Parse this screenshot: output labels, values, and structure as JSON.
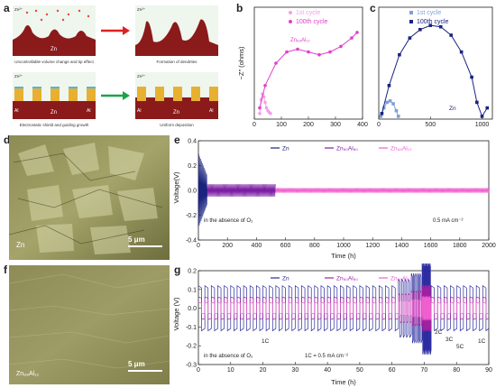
{
  "panel_labels": {
    "a": "a",
    "b": "b",
    "c": "c",
    "d": "d",
    "e": "e",
    "f": "f",
    "g": "g"
  },
  "panel_a": {
    "zn_ion": "Zn²⁺",
    "top_left_metal": "Zn",
    "top_left_caption": "Uncontrollable volume change and tip effect",
    "top_right_caption": "Formation of dendrites",
    "bottom_left_caption": "Electrostatic shield and guiding growth",
    "bottom_right_caption": "Uniform deposition",
    "al_label": "Al",
    "zn_label": "Zn",
    "arrow_top_color": "#e02020",
    "arrow_bottom_color": "#1aa34a"
  },
  "panel_b_c_ylabel": "−Z″ (ohms)",
  "panel_b_inset_label": "Zn₈₈Al₁₂",
  "panel_c_inset_label": "Zn",
  "panel_d_label": "Zn",
  "panel_d_scalebar": "5 μm",
  "panel_f_label": "Zn₈₈Al₁₂",
  "panel_f_scalebar": "5 μm",
  "panel_e_note": "in the absence of O₂",
  "panel_e_current": "0.5 mA cm⁻²",
  "panel_g_note": "in the absence of O₂",
  "panel_g_rate": "1C = 0.5 mA cm⁻²",
  "panel_g_rate_labels": [
    "1C",
    "2C",
    "3C",
    "5C",
    "1C"
  ],
  "chart_data": [
    {
      "id": "b",
      "type": "scatter",
      "ylabel": "−Z″ (ohms)",
      "xlim": [
        0,
        400
      ],
      "ylim": [
        0,
        200
      ],
      "xticks": [
        0,
        100,
        200,
        300,
        400
      ],
      "legend_placement": "top-right",
      "series": [
        {
          "name": "1st cycle",
          "color": "#f4a0e4",
          "x": [
            20,
            25,
            30,
            35,
            40,
            45,
            50,
            55,
            60
          ],
          "y": [
            10,
            35,
            45,
            40,
            30,
            20,
            15,
            12,
            10
          ]
        },
        {
          "name": "100th cycle",
          "color": "#e040c8",
          "x": [
            20,
            40,
            80,
            120,
            160,
            200,
            240,
            280,
            320,
            360,
            380
          ],
          "y": [
            20,
            60,
            100,
            120,
            125,
            120,
            115,
            120,
            130,
            145,
            155
          ]
        }
      ]
    },
    {
      "id": "c",
      "type": "scatter",
      "xlim": [
        0,
        1100
      ],
      "ylim": [
        0,
        400
      ],
      "xticks": [
        0,
        500,
        1000
      ],
      "legend_placement": "top-right",
      "series": [
        {
          "name": "1st cycle",
          "color": "#7fa0d8",
          "x": [
            20,
            50,
            80,
            110,
            140,
            170,
            190
          ],
          "y": [
            10,
            40,
            60,
            65,
            55,
            30,
            10
          ]
        },
        {
          "name": "100th cycle",
          "color": "#1a237e",
          "x": [
            30,
            100,
            200,
            300,
            400,
            500,
            600,
            700,
            800,
            900,
            950,
            1000,
            1050
          ],
          "y": [
            20,
            120,
            230,
            290,
            320,
            335,
            330,
            300,
            240,
            150,
            60,
            10,
            40
          ]
        }
      ]
    },
    {
      "id": "e",
      "type": "line",
      "xlabel": "Time (h)",
      "ylabel": "Voltage(V)",
      "xlim": [
        0,
        2000
      ],
      "ylim": [
        -0.4,
        0.4
      ],
      "xticks": [
        0,
        200,
        400,
        600,
        800,
        1000,
        1200,
        1400,
        1600,
        1800,
        2000
      ],
      "yticks": [
        -0.4,
        -0.2,
        0.0,
        0.2,
        0.4
      ],
      "legend_placement": "top",
      "series": [
        {
          "name": "Zn",
          "color": "#1a237e",
          "end_time": 60,
          "amplitude": 0.3
        },
        {
          "name": "Zn₅₀Al₅₀",
          "color": "#7a1fa2",
          "end_time": 530,
          "amplitude": 0.05
        },
        {
          "name": "Zn₈₈Al₁₂",
          "color": "#f060d0",
          "end_time": 2000,
          "amplitude": 0.02
        }
      ]
    },
    {
      "id": "g",
      "type": "line",
      "xlabel": "Time (h)",
      "ylabel": "Voltage (V)",
      "xlim": [
        0,
        90
      ],
      "ylim": [
        -0.3,
        0.2
      ],
      "xticks": [
        0,
        10,
        20,
        30,
        40,
        50,
        60,
        70,
        80,
        90
      ],
      "yticks": [
        -0.3,
        -0.2,
        -0.1,
        0.0,
        0.1,
        0.2
      ],
      "legend_placement": "top",
      "series": [
        {
          "name": "Zn",
          "color": "#2a2aa0",
          "amplitude": 0.12
        },
        {
          "name": "Zn₅₀Al₅₀",
          "color": "#a020a0",
          "amplitude": 0.06
        },
        {
          "name": "Zn₈₈Al₁₂",
          "color": "#f060d0",
          "amplitude": 0.03
        }
      ]
    }
  ]
}
